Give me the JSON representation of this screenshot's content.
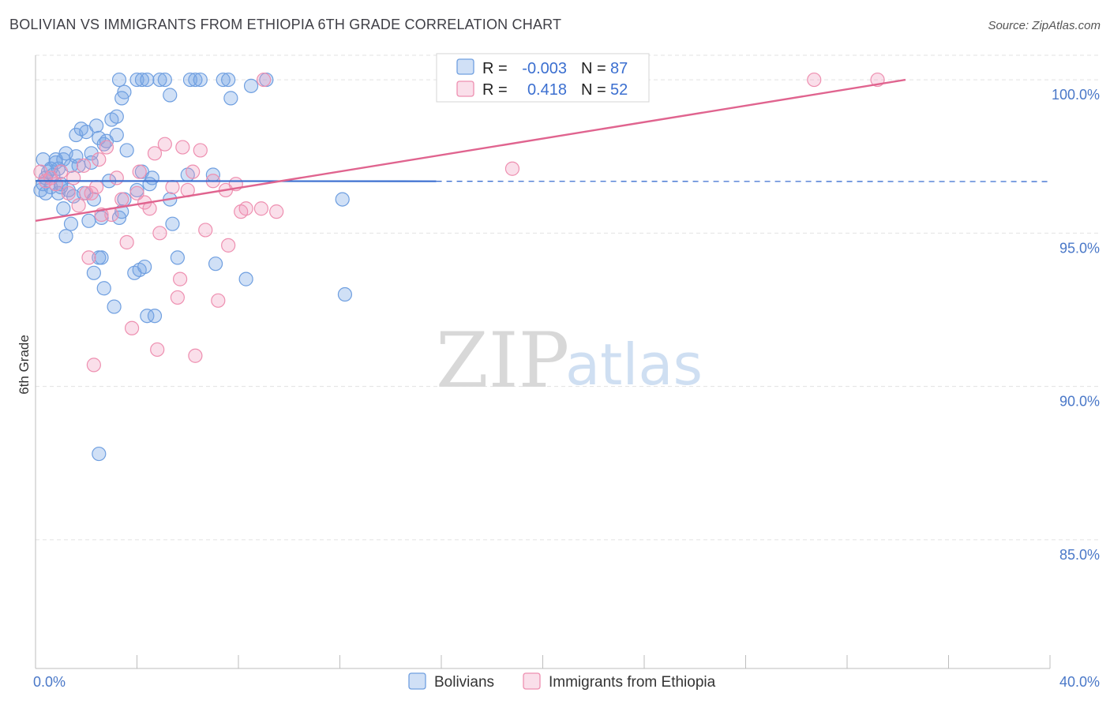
{
  "title": "BOLIVIAN VS IMMIGRANTS FROM ETHIOPIA 6TH GRADE CORRELATION CHART",
  "source": "Source: ZipAtlas.com",
  "watermark": {
    "zip": "ZIP",
    "atlas": "atlas"
  },
  "colors": {
    "blue": "#6f9fe0",
    "blue_fill": "rgba(120,165,230,0.35)",
    "blue_line": "#3b6fd0",
    "pink": "#ee8fb0",
    "pink_fill": "rgba(240,150,185,0.30)",
    "pink_line": "#e0648f",
    "grid": "#e3e3e3",
    "axis_text": "#4a78c8"
  },
  "legend": {
    "rows": [
      {
        "r_label": "R =",
        "r_value": "-0.003",
        "n_label": "N =",
        "n_value": "87"
      },
      {
        "r_label": "R =",
        "r_value": "0.418",
        "n_label": "N =",
        "n_value": "52"
      }
    ]
  },
  "bottom_legend": {
    "series1": "Bolivians",
    "series2": "Immigrants from Ethiopia"
  },
  "chart_data": {
    "type": "scatter",
    "title": "BOLIVIAN VS IMMIGRANTS FROM ETHIOPIA 6TH GRADE CORRELATION CHART",
    "xlabel": "",
    "ylabel": "6th Grade",
    "xlim": [
      0,
      40
    ],
    "ylim": [
      80.8,
      100.8
    ],
    "x_tick_labels": [
      "0.0%",
      "40.0%"
    ],
    "y_ticks": [
      85,
      90,
      95,
      100
    ],
    "y_tick_labels": [
      "85.0%",
      "90.0%",
      "95.0%",
      "100.0%"
    ],
    "series": [
      {
        "name": "Bolivians",
        "trend": {
          "x0": 0,
          "y0": 96.7,
          "x1": 15.8,
          "y1": 96.69,
          "dash_to_x": 40,
          "dash_y": 96.68
        },
        "points": [
          [
            0.2,
            96.4
          ],
          [
            0.3,
            96.6
          ],
          [
            0.4,
            96.8
          ],
          [
            0.5,
            97.0
          ],
          [
            0.6,
            96.5
          ],
          [
            0.7,
            96.9
          ],
          [
            0.8,
            97.3
          ],
          [
            0.9,
            97.1
          ],
          [
            1.0,
            96.6
          ],
          [
            1.1,
            97.4
          ],
          [
            0.3,
            97.4
          ],
          [
            0.6,
            97.1
          ],
          [
            0.9,
            96.3
          ],
          [
            1.2,
            97.6
          ],
          [
            1.4,
            97.2
          ],
          [
            1.6,
            98.2
          ],
          [
            1.7,
            97.2
          ],
          [
            1.8,
            98.4
          ],
          [
            2.0,
            98.3
          ],
          [
            2.2,
            97.6
          ],
          [
            2.4,
            98.5
          ],
          [
            2.5,
            98.1
          ],
          [
            2.7,
            97.9
          ],
          [
            2.8,
            98.0
          ],
          [
            3.0,
            98.7
          ],
          [
            3.2,
            98.2
          ],
          [
            1.3,
            96.4
          ],
          [
            1.5,
            96.2
          ],
          [
            1.9,
            96.3
          ],
          [
            2.1,
            95.4
          ],
          [
            1.1,
            95.8
          ],
          [
            1.2,
            94.9
          ],
          [
            1.4,
            95.3
          ],
          [
            2.3,
            96.1
          ],
          [
            2.6,
            95.5
          ],
          [
            2.9,
            96.7
          ],
          [
            3.3,
            95.5
          ],
          [
            3.5,
            96.1
          ],
          [
            3.6,
            97.7
          ],
          [
            4.0,
            96.4
          ],
          [
            4.2,
            97.0
          ],
          [
            4.6,
            96.8
          ],
          [
            5.3,
            96.1
          ],
          [
            5.4,
            95.3
          ],
          [
            3.4,
            95.7
          ],
          [
            3.1,
            92.6
          ],
          [
            2.7,
            93.2
          ],
          [
            2.3,
            93.7
          ],
          [
            2.5,
            94.2
          ],
          [
            2.6,
            94.2
          ],
          [
            3.9,
            93.7
          ],
          [
            4.1,
            93.8
          ],
          [
            4.3,
            93.9
          ],
          [
            4.4,
            92.3
          ],
          [
            4.7,
            92.3
          ],
          [
            5.6,
            94.2
          ],
          [
            7.1,
            94.0
          ],
          [
            8.3,
            93.5
          ],
          [
            12.1,
            96.1
          ],
          [
            12.2,
            93.0
          ],
          [
            2.5,
            87.8
          ],
          [
            3.5,
            99.6
          ],
          [
            3.3,
            100.0
          ],
          [
            3.4,
            99.4
          ],
          [
            4.0,
            100.0
          ],
          [
            4.2,
            100.0
          ],
          [
            4.4,
            100.0
          ],
          [
            4.9,
            100.0
          ],
          [
            5.1,
            100.0
          ],
          [
            5.3,
            99.5
          ],
          [
            6.1,
            100.0
          ],
          [
            6.3,
            100.0
          ],
          [
            6.5,
            100.0
          ],
          [
            7.4,
            100.0
          ],
          [
            7.6,
            100.0
          ],
          [
            7.7,
            99.4
          ],
          [
            8.5,
            99.8
          ],
          [
            9.1,
            100.0
          ],
          [
            3.2,
            98.8
          ],
          [
            0.4,
            96.3
          ],
          [
            0.8,
            97.4
          ],
          [
            1.0,
            96.5
          ],
          [
            2.2,
            97.3
          ],
          [
            6.0,
            96.9
          ],
          [
            7.0,
            96.9
          ],
          [
            4.5,
            96.6
          ],
          [
            1.6,
            97.5
          ]
        ]
      },
      {
        "name": "Immigrants from Ethiopia",
        "trend": {
          "x0": 0,
          "y0": 95.4,
          "x1": 34.3,
          "y1": 100.0
        },
        "points": [
          [
            0.2,
            97.0
          ],
          [
            0.4,
            96.7
          ],
          [
            0.6,
            96.8
          ],
          [
            0.8,
            96.6
          ],
          [
            1.0,
            97.0
          ],
          [
            1.3,
            96.3
          ],
          [
            1.5,
            96.8
          ],
          [
            1.7,
            95.9
          ],
          [
            1.9,
            97.2
          ],
          [
            2.0,
            96.3
          ],
          [
            2.1,
            94.2
          ],
          [
            2.2,
            96.3
          ],
          [
            2.4,
            96.5
          ],
          [
            2.5,
            97.4
          ],
          [
            2.6,
            95.6
          ],
          [
            2.8,
            97.8
          ],
          [
            3.0,
            95.6
          ],
          [
            3.2,
            96.8
          ],
          [
            3.4,
            96.1
          ],
          [
            3.6,
            94.7
          ],
          [
            3.8,
            91.9
          ],
          [
            4.0,
            96.3
          ],
          [
            4.1,
            97.0
          ],
          [
            4.3,
            96.0
          ],
          [
            4.5,
            95.8
          ],
          [
            4.7,
            97.6
          ],
          [
            4.9,
            95.0
          ],
          [
            5.1,
            97.9
          ],
          [
            5.4,
            96.5
          ],
          [
            5.6,
            92.9
          ],
          [
            5.8,
            97.8
          ],
          [
            6.0,
            96.4
          ],
          [
            6.2,
            97.0
          ],
          [
            6.3,
            91.0
          ],
          [
            6.5,
            97.7
          ],
          [
            6.7,
            95.1
          ],
          [
            7.0,
            96.7
          ],
          [
            7.2,
            92.8
          ],
          [
            7.5,
            96.4
          ],
          [
            7.6,
            94.6
          ],
          [
            7.9,
            96.6
          ],
          [
            8.1,
            95.7
          ],
          [
            8.3,
            95.8
          ],
          [
            8.9,
            95.8
          ],
          [
            9.0,
            100.0
          ],
          [
            9.5,
            95.7
          ],
          [
            2.3,
            90.7
          ],
          [
            4.8,
            91.2
          ],
          [
            5.7,
            93.5
          ],
          [
            18.8,
            97.1
          ],
          [
            30.7,
            100.0
          ],
          [
            33.2,
            100.0
          ]
        ]
      }
    ]
  }
}
